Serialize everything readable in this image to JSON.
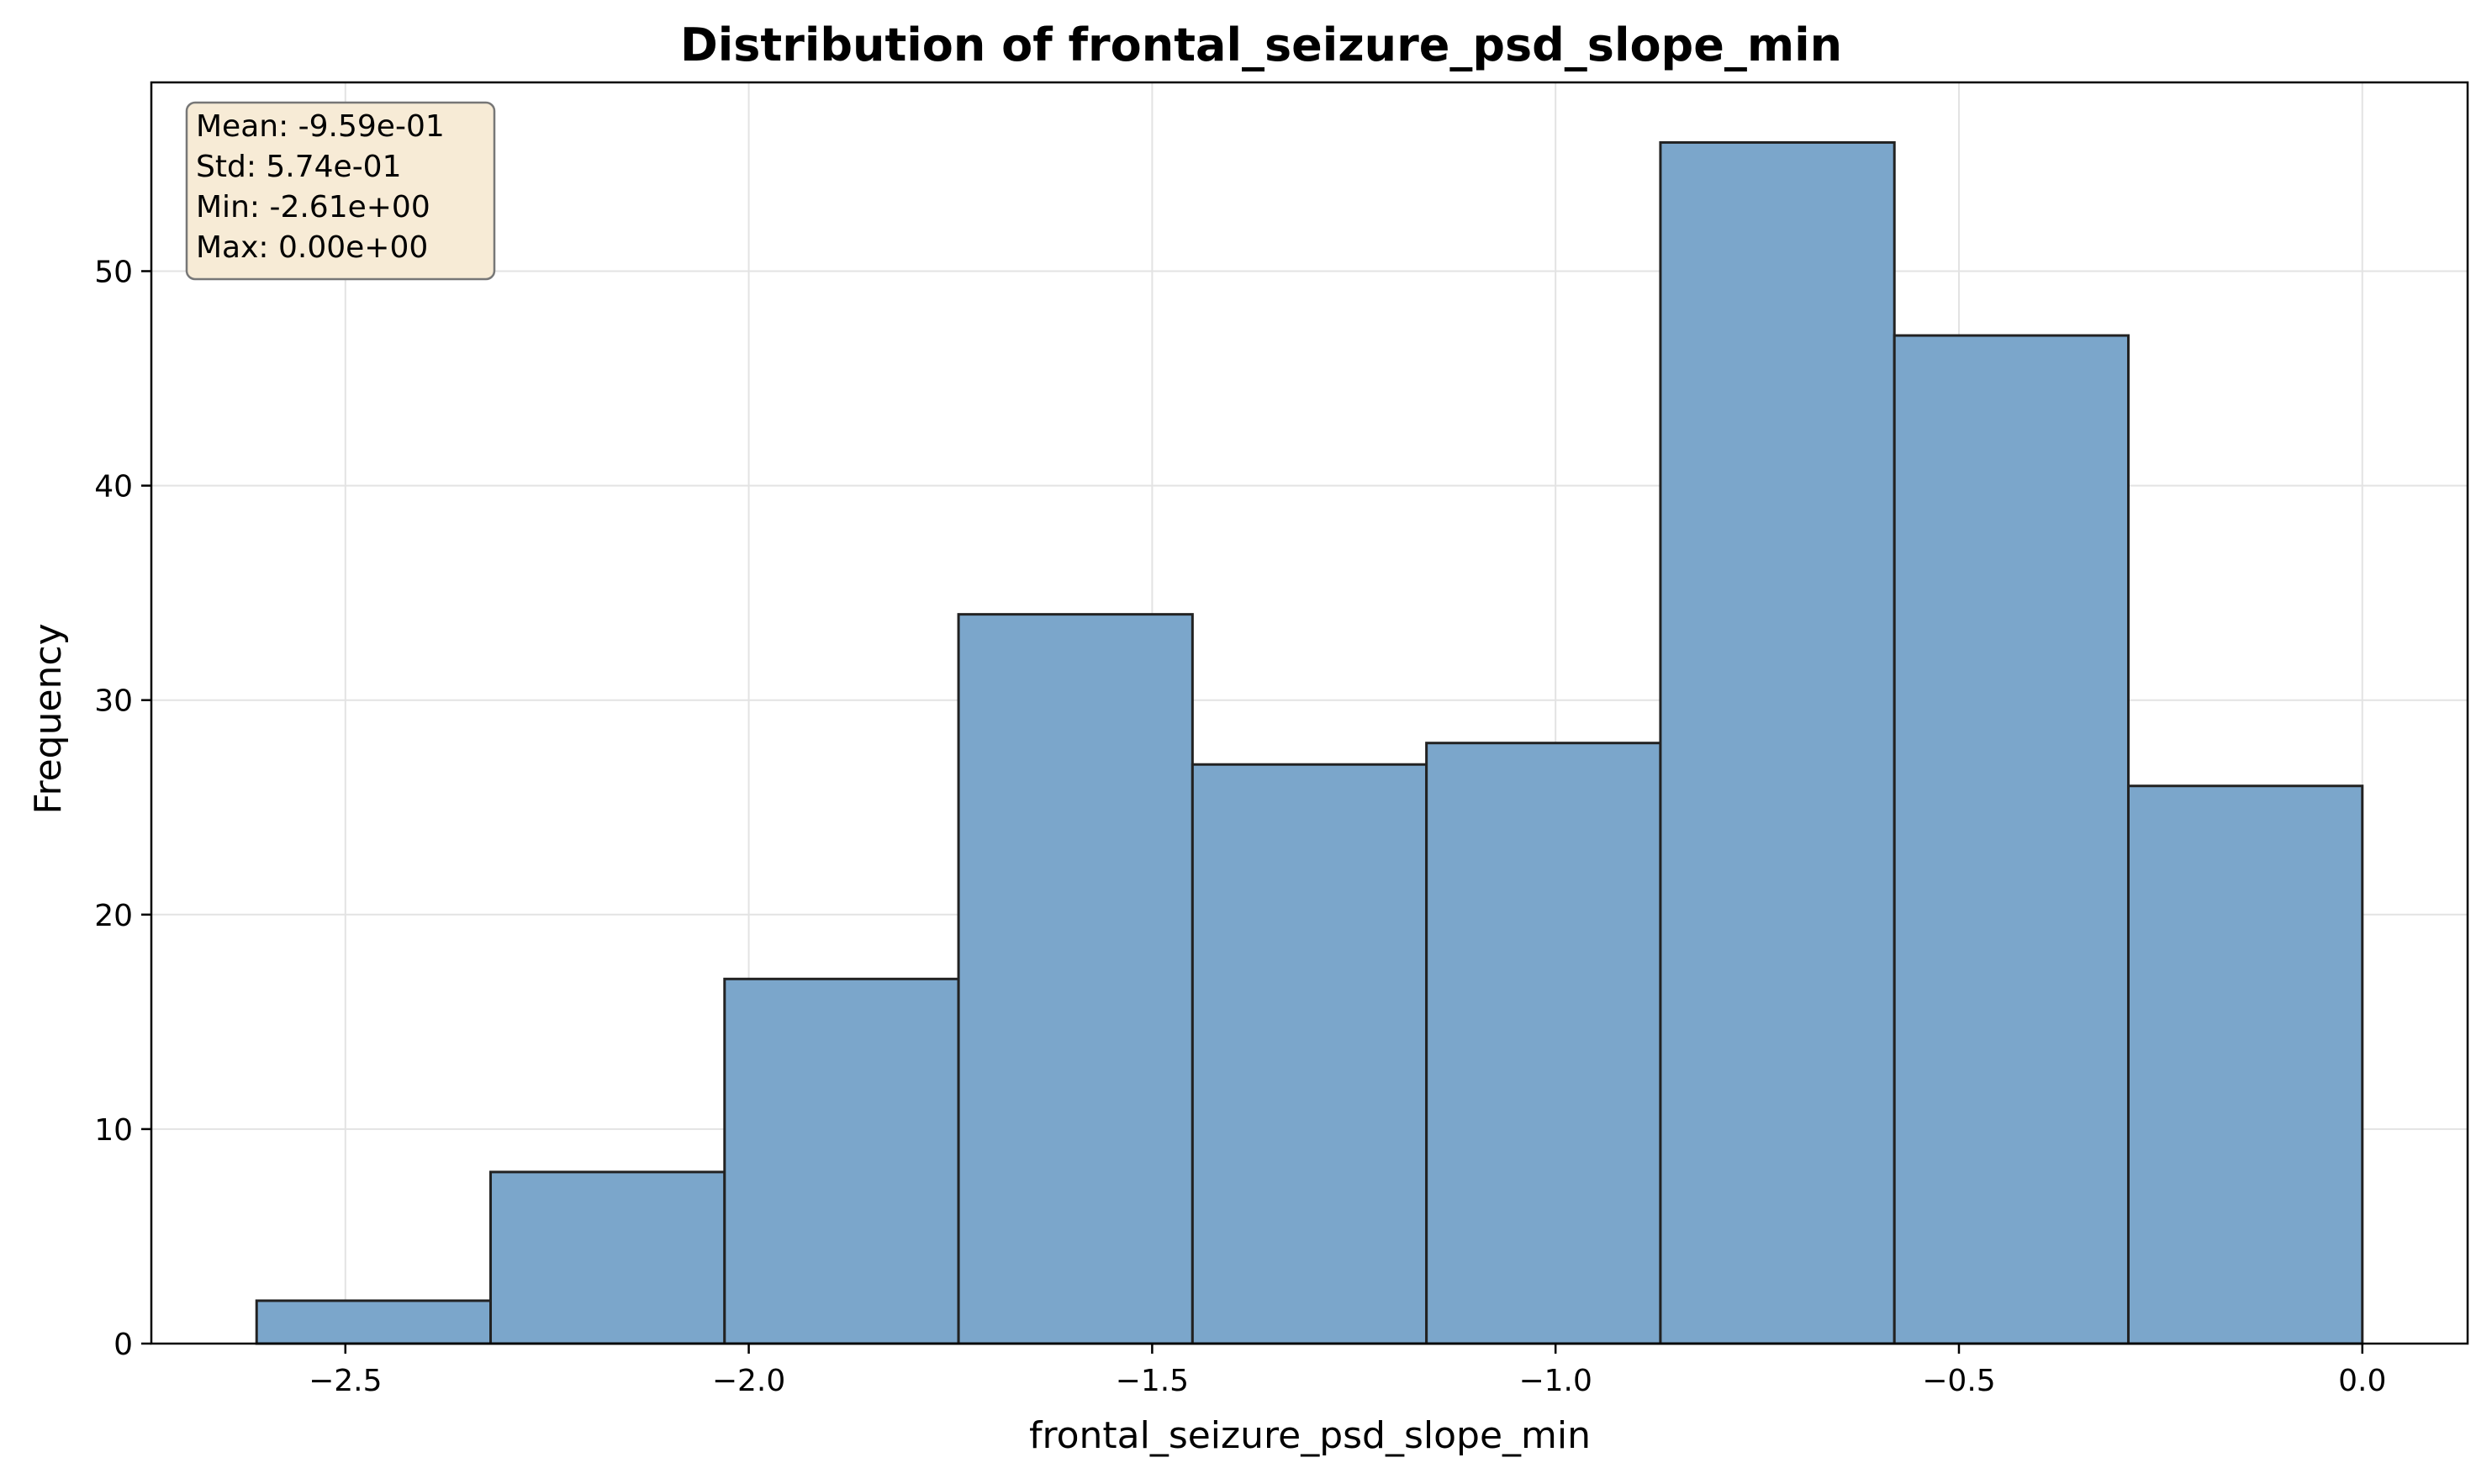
{
  "chart_data": {
    "type": "bar",
    "title": "Distribution of frontal_seizure_psd_slope_min",
    "xlabel": "frontal_seizure_psd_slope_min",
    "ylabel": "Frequency",
    "bin_edges": [
      -2.61,
      -2.32,
      -2.03,
      -1.74,
      -1.45,
      -1.16,
      -0.87,
      -0.58,
      -0.29,
      0.0
    ],
    "values": [
      2,
      8,
      17,
      34,
      27,
      28,
      56,
      47,
      26
    ],
    "xlim": [
      -2.7405,
      0.1305
    ],
    "ylim": [
      0,
      58.8
    ],
    "xticks": [
      -2.5,
      -2.0,
      -1.5,
      -1.0,
      -0.5,
      0.0
    ],
    "xtick_labels": [
      "−2.5",
      "−2.0",
      "−1.5",
      "−1.0",
      "−0.5",
      "0.0"
    ],
    "yticks": [
      0,
      10,
      20,
      30,
      40,
      50
    ],
    "ytick_labels": [
      "0",
      "10",
      "20",
      "30",
      "40",
      "50"
    ],
    "grid": true,
    "bar_color": "#7ba6cb",
    "edge_color": "#222222",
    "stats_box": {
      "lines": [
        "Mean: -9.59e-01",
        "Std: 5.74e-01",
        "Min: -2.61e+00",
        "Max: 0.00e+00"
      ],
      "position": "top-left",
      "fill": "#f7ebd6",
      "border": "#777777"
    }
  }
}
